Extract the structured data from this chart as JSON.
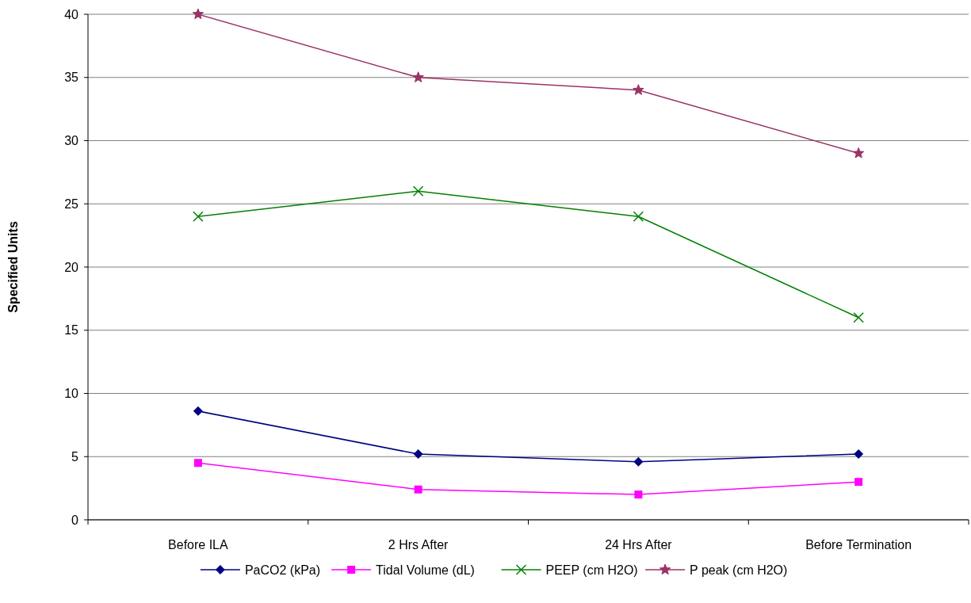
{
  "chart_data": {
    "type": "line",
    "ylabel": "Specified Units",
    "categories": [
      "Before ILA",
      "2 Hrs After",
      "24 Hrs After",
      "Before Termination"
    ],
    "series": [
      {
        "name": "PaCO2 (kPa)",
        "color": "#000080",
        "marker": "diamond",
        "values": [
          8.6,
          5.2,
          4.6,
          5.2
        ]
      },
      {
        "name": "Tidal Volume (dL)",
        "color": "#ff00ff",
        "marker": "square",
        "values": [
          4.5,
          2.4,
          2.0,
          3.0
        ]
      },
      {
        "name": "PEEP (cm H2O)",
        "color": "#008000",
        "marker": "cross",
        "values": [
          24,
          26,
          24,
          16
        ]
      },
      {
        "name": "P peak (cm H2O)",
        "color": "#993366",
        "marker": "star",
        "values": [
          40,
          35,
          34,
          29
        ]
      }
    ],
    "ylim": [
      0,
      40
    ],
    "yticks": [
      0,
      5,
      10,
      15,
      20,
      25,
      30,
      35,
      40
    ],
    "grid": "y",
    "legend": "bottom"
  }
}
